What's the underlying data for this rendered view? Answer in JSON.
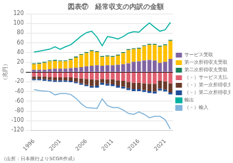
{
  "chart_data": {
    "type": "bar",
    "title": "図表⑰　経常収支の内訳の金額",
    "ylabel": "（兆円）",
    "annotations": [
      "（出所：日本銀行よりSCGR作成）"
    ],
    "categories": [
      "1996",
      null,
      null,
      null,
      null,
      "2001",
      null,
      null,
      null,
      null,
      "2006",
      null,
      null,
      null,
      null,
      "2011",
      null,
      null,
      null,
      null,
      "2016",
      null,
      null,
      null,
      null,
      "2021",
      null
    ],
    "stacked": true,
    "grid": true,
    "legend": "right",
    "ylim": [
      -120,
      120
    ],
    "yticks": [
      -120,
      -100,
      -80,
      -60,
      -40,
      -20,
      0,
      20,
      40,
      60,
      80,
      100,
      120
    ],
    "series": [
      {
        "name": "サービス受取",
        "type": "bar",
        "color": "#8064a2",
        "values": [
          5,
          5,
          5,
          6,
          7,
          7,
          7,
          8,
          9,
          10,
          12,
          13,
          14,
          13,
          14,
          14,
          15,
          16,
          18,
          21,
          22,
          24,
          25,
          24,
          19,
          21,
          27
        ]
      },
      {
        "name": "第一次所得収支受取",
        "type": "bar",
        "color": "#ffc000",
        "values": [
          11,
          12,
          14,
          16,
          16,
          15,
          15,
          17,
          21,
          25,
          27,
          30,
          27,
          18,
          18,
          17,
          19,
          23,
          27,
          26,
          26,
          29,
          31,
          32,
          33,
          34,
          37
        ]
      },
      {
        "name": "第二次所得収支受取",
        "type": "bar",
        "color": "#1a7f5e",
        "values": [
          2,
          2,
          2,
          2,
          2,
          2,
          2,
          2,
          2,
          2,
          2,
          2,
          2,
          2,
          2,
          2,
          2,
          2,
          2,
          2,
          2,
          2,
          2,
          2,
          2,
          2,
          2
        ]
      },
      {
        "name": "（－）サービス支払",
        "type": "bar",
        "color": "#e06070",
        "values": [
          -9,
          -9,
          -9,
          -10,
          -11,
          -11,
          -11,
          -11,
          -12,
          -13,
          -14,
          -15,
          -16,
          -14,
          -15,
          -15,
          -17,
          -18,
          -20,
          -22,
          -22,
          -23,
          -24,
          -24,
          -18,
          -19,
          -23
        ]
      },
      {
        "name": "（－）第一次所得収支支払",
        "type": "bar",
        "color": "#6b3a2a",
        "values": [
          -5,
          -5,
          -6,
          -6,
          -6,
          -6,
          -6,
          -7,
          -8,
          -10,
          -12,
          -14,
          -12,
          -8,
          -9,
          -10,
          -11,
          -12,
          -13,
          -13,
          -13,
          -14,
          -15,
          -16,
          -16,
          -17,
          -19
        ]
      },
      {
        "name": "（－）第二次所得収支支払",
        "type": "bar",
        "color": "#1f4e99",
        "values": [
          -3,
          -3,
          -3,
          -3,
          -3,
          -3,
          -3,
          -3,
          -3,
          -3,
          -3,
          -3,
          -4,
          -4,
          -4,
          -4,
          -4,
          -4,
          -4,
          -4,
          -4,
          -4,
          -4,
          -4,
          -4,
          -4,
          -4
        ]
      },
      {
        "name": "輸出",
        "type": "line",
        "color": "#00b0a0",
        "values": [
          41,
          43,
          45,
          47,
          52,
          47,
          52,
          56,
          65,
          74,
          81,
          84,
          72,
          54,
          73,
          71,
          68,
          73,
          80,
          83,
          82,
          92,
          101,
          92,
          84,
          87,
          102
        ]
      },
      {
        "name": "（－）輸入",
        "type": "line",
        "color": "#7fb3d9",
        "values": [
          -36,
          -38,
          -39,
          -40,
          -47,
          -44,
          -44,
          -46,
          -54,
          -65,
          -73,
          -74,
          -75,
          -55,
          -69,
          -73,
          -73,
          -78,
          -85,
          -87,
          -82,
          -87,
          -94,
          -91,
          -91,
          -98,
          -117
        ]
      }
    ]
  }
}
